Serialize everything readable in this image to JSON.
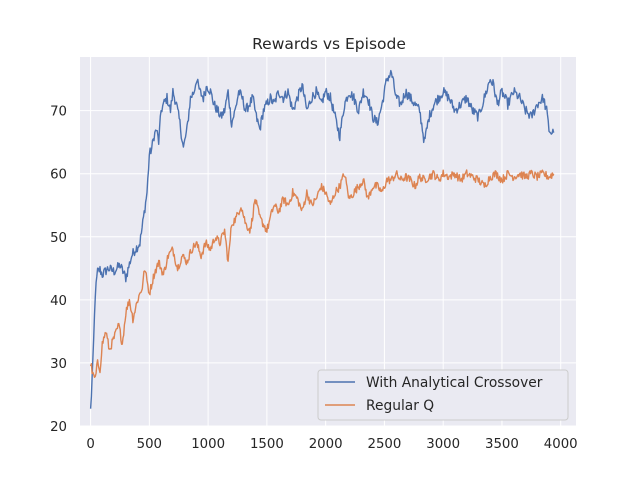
{
  "chart_data": {
    "type": "line",
    "title": "Rewards vs Episode",
    "xlabel": "",
    "ylabel": "",
    "xlim": [
      -90,
      4130
    ],
    "ylim": [
      20,
      78.5
    ],
    "xticks": [
      0,
      500,
      1000,
      1500,
      2000,
      2500,
      3000,
      3500,
      4000
    ],
    "yticks": [
      20,
      30,
      40,
      50,
      60,
      70
    ],
    "grid": true,
    "legend_position": "lower-right",
    "series": [
      {
        "name": "With Analytical Crossover",
        "color": "#4c72b0",
        "x": [
          0,
          20,
          40,
          60,
          80,
          100,
          150,
          200,
          250,
          300,
          350,
          380,
          420,
          450,
          480,
          500,
          520,
          540,
          560,
          580,
          600,
          620,
          650,
          680,
          700,
          730,
          760,
          790,
          820,
          850,
          880,
          900,
          930,
          960,
          990,
          1020,
          1050,
          1080,
          1110,
          1140,
          1170,
          1200,
          1230,
          1260,
          1290,
          1320,
          1350,
          1380,
          1410,
          1440,
          1470,
          1500,
          1530,
          1560,
          1600,
          1640,
          1680,
          1720,
          1760,
          1800,
          1840,
          1880,
          1920,
          1960,
          2000,
          2040,
          2080,
          2120,
          2160,
          2200,
          2240,
          2280,
          2320,
          2360,
          2400,
          2440,
          2480,
          2520,
          2560,
          2600,
          2640,
          2680,
          2720,
          2760,
          2800,
          2840,
          2880,
          2920,
          2960,
          3000,
          3050,
          3100,
          3150,
          3200,
          3250,
          3300,
          3350,
          3400,
          3430,
          3460,
          3500,
          3550,
          3600,
          3650,
          3700,
          3750,
          3800,
          3850,
          3880,
          3900,
          3920,
          3940
        ],
        "values": [
          22.5,
          30,
          41,
          44.5,
          44.8,
          44,
          45,
          44.5,
          45.5,
          43.5,
          47,
          48,
          49,
          53,
          57,
          63,
          64,
          66,
          67,
          65,
          70,
          71,
          72,
          70,
          73,
          71,
          68,
          64,
          67,
          72,
          73,
          75,
          73,
          72,
          74,
          73,
          71,
          70,
          69,
          70,
          73,
          68,
          70,
          73,
          72,
          70,
          71,
          72,
          69,
          67,
          70,
          71,
          72,
          71,
          73,
          72,
          73,
          70,
          72,
          74,
          70,
          72,
          73,
          71,
          73,
          72,
          69,
          66,
          71,
          73,
          72,
          70,
          73,
          72,
          69,
          68,
          71,
          75,
          76,
          72,
          71,
          73,
          72,
          71,
          70,
          65,
          69,
          71,
          72,
          73,
          72,
          70,
          71,
          72,
          70,
          69,
          72,
          75,
          74,
          71,
          73,
          71,
          73,
          72,
          70,
          69,
          71,
          72,
          70,
          67,
          66.5,
          66.5
        ]
      },
      {
        "name": "Regular Q",
        "color": "#dd8452",
        "x": [
          0,
          20,
          40,
          60,
          80,
          100,
          130,
          160,
          200,
          240,
          270,
          300,
          330,
          360,
          400,
          440,
          460,
          480,
          500,
          540,
          580,
          620,
          660,
          700,
          740,
          780,
          820,
          860,
          900,
          940,
          980,
          1020,
          1060,
          1100,
          1140,
          1170,
          1200,
          1240,
          1280,
          1320,
          1360,
          1400,
          1440,
          1470,
          1500,
          1530,
          1560,
          1600,
          1640,
          1680,
          1720,
          1760,
          1800,
          1840,
          1880,
          1920,
          1960,
          2000,
          2040,
          2080,
          2120,
          2160,
          2200,
          2240,
          2280,
          2320,
          2360,
          2400,
          2440,
          2480,
          2520,
          2560,
          2600,
          2640,
          2680,
          2720,
          2760,
          2800,
          2840,
          2880,
          2920,
          2960,
          3000,
          3050,
          3100,
          3150,
          3200,
          3250,
          3300,
          3350,
          3400,
          3450,
          3500,
          3550,
          3600,
          3650,
          3700,
          3750,
          3800,
          3850,
          3900,
          3940
        ],
        "values": [
          30,
          28,
          27.5,
          30,
          29,
          33,
          35,
          32,
          34,
          36,
          33,
          38,
          40,
          37,
          40,
          42,
          45,
          43,
          41,
          44,
          46,
          44,
          47,
          48,
          45,
          47,
          46,
          48,
          49,
          47,
          49,
          48,
          50,
          49,
          51,
          46,
          52,
          53,
          55,
          52,
          51,
          56,
          53,
          52,
          51,
          53,
          55,
          54,
          56,
          55,
          57,
          56,
          54,
          57,
          55,
          56,
          58,
          57,
          55,
          57,
          58,
          60,
          56,
          57,
          58,
          59,
          56,
          58,
          58,
          57,
          59,
          59,
          60,
          59,
          59.5,
          59,
          58,
          59.5,
          59,
          59.5,
          60,
          59,
          60,
          59.5,
          60,
          59,
          60,
          59.5,
          59,
          58,
          59.5,
          60,
          59,
          60,
          59.5,
          60,
          59.5,
          60,
          59.5,
          60,
          59.5,
          60
        ]
      }
    ]
  }
}
